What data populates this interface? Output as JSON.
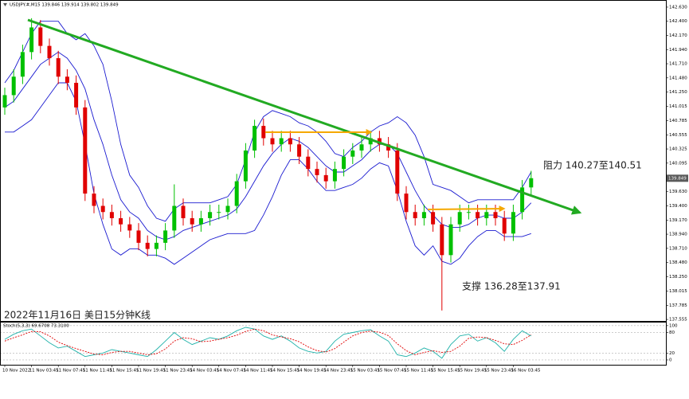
{
  "chart_data": [
    {
      "type": "candlestick",
      "title": "USDJPY.#,M15  139.846 139.914 139.802 139.849",
      "categories": [
        "10 Nov 2022",
        null,
        null,
        "11 Nov 03:45",
        null,
        null,
        "11 Nov 07:45",
        null,
        null,
        "11 Nov 11:45",
        null,
        null,
        "11 Nov 15:45",
        null,
        null,
        "11 Nov 19:45",
        null,
        null,
        "11 Nov 23:45",
        null,
        null,
        "14 Nov 03:45",
        null,
        null,
        "14 Nov 07:45",
        null,
        null,
        "14 Nov 11:45",
        null,
        null,
        "14 Nov 15:45",
        null,
        null,
        "14 Nov 19:45",
        null,
        null,
        "14 Nov 23:45",
        null,
        null,
        "15 Nov 03:45",
        null,
        null,
        "15 Nov 07:45",
        null,
        null,
        "15 Nov 11:45",
        null,
        null,
        "15 Nov 15:45",
        null,
        null,
        "15 Nov 19:45",
        null,
        null,
        "15 Nov 23:45",
        null,
        null,
        "16 Nov 03:45",
        null,
        null
      ],
      "open": [
        141.0,
        141.2,
        141.5,
        141.9,
        142.3,
        142.0,
        141.8,
        141.5,
        141.4,
        141.0,
        139.6,
        139.4,
        139.3,
        139.2,
        139.1,
        139.0,
        138.8,
        138.7,
        138.8,
        139.0,
        139.4,
        139.2,
        139.1,
        139.2,
        139.3,
        139.3,
        139.4,
        139.8,
        140.3,
        140.7,
        140.5,
        140.4,
        140.5,
        140.4,
        140.2,
        140.0,
        139.9,
        139.8,
        140.0,
        140.2,
        140.3,
        140.4,
        140.5,
        140.4,
        140.3,
        139.6,
        139.3,
        139.2,
        139.3,
        139.1,
        138.6,
        139.1,
        139.3,
        139.3,
        139.2,
        139.3,
        139.2,
        138.95,
        139.3,
        139.7
      ],
      "high": [
        141.32,
        141.62,
        142.02,
        142.45,
        142.42,
        142.12,
        141.92,
        141.62,
        141.52,
        141.12,
        139.72,
        139.52,
        139.42,
        139.32,
        139.22,
        139.12,
        138.92,
        138.92,
        139.12,
        139.75,
        139.52,
        139.32,
        139.32,
        139.42,
        139.42,
        139.52,
        139.92,
        140.42,
        140.8,
        140.82,
        140.62,
        140.62,
        140.62,
        140.52,
        140.32,
        140.12,
        140.02,
        140.12,
        140.32,
        140.42,
        140.52,
        140.62,
        140.62,
        140.52,
        140.42,
        139.72,
        139.42,
        139.42,
        139.42,
        139.22,
        139.22,
        139.42,
        139.42,
        139.42,
        139.42,
        139.42,
        139.32,
        139.42,
        139.82,
        139.97
      ],
      "low": [
        140.88,
        141.08,
        141.38,
        141.78,
        141.88,
        141.68,
        141.38,
        141.28,
        140.88,
        139.48,
        139.28,
        139.18,
        139.08,
        138.98,
        138.88,
        138.68,
        138.58,
        138.58,
        138.68,
        138.88,
        139.08,
        138.98,
        138.98,
        139.08,
        139.18,
        139.18,
        139.28,
        139.68,
        140.18,
        140.38,
        140.28,
        140.28,
        140.28,
        140.08,
        139.88,
        139.78,
        139.68,
        139.68,
        139.88,
        140.08,
        140.18,
        140.28,
        140.28,
        140.18,
        139.48,
        139.18,
        139.08,
        139.08,
        138.98,
        137.7,
        138.48,
        138.98,
        139.18,
        139.08,
        139.08,
        139.08,
        138.83,
        138.83,
        139.18,
        139.58
      ],
      "close": [
        141.2,
        141.5,
        141.9,
        142.3,
        142.0,
        141.8,
        141.5,
        141.4,
        141.0,
        139.6,
        139.4,
        139.3,
        139.2,
        139.1,
        139.0,
        138.8,
        138.7,
        138.8,
        139.0,
        139.4,
        139.2,
        139.1,
        139.2,
        139.3,
        139.3,
        139.4,
        139.8,
        140.3,
        140.7,
        140.5,
        140.4,
        140.5,
        140.4,
        140.2,
        140.0,
        139.9,
        139.8,
        140.0,
        140.2,
        140.3,
        140.4,
        140.5,
        140.4,
        140.3,
        139.6,
        139.3,
        139.2,
        139.3,
        139.1,
        138.6,
        139.1,
        139.3,
        139.3,
        139.2,
        139.3,
        139.2,
        138.95,
        139.3,
        139.7,
        139.85
      ],
      "up_color": "#00c000",
      "down_color": "#e00000",
      "overlays": [
        {
          "color": "#1a1ad0",
          "values": [
            141.4,
            141.6,
            141.9,
            142.2,
            142.4,
            142.4,
            142.4,
            142.2,
            142.1,
            142.2,
            142.0,
            141.7,
            141.1,
            140.4,
            139.9,
            139.7,
            139.4,
            139.2,
            139.15,
            139.35,
            139.45,
            139.45,
            139.45,
            139.45,
            139.5,
            139.55,
            139.75,
            140.15,
            140.6,
            140.85,
            140.95,
            140.9,
            140.85,
            140.75,
            140.7,
            140.6,
            140.45,
            140.25,
            140.2,
            140.35,
            140.45,
            140.6,
            140.7,
            140.75,
            140.85,
            140.75,
            140.55,
            140.2,
            139.75,
            139.7,
            139.65,
            139.55,
            139.45,
            139.5,
            139.5,
            139.5,
            139.5,
            139.5,
            139.7,
            139.95
          ]
        },
        {
          "color": "#1a1ad0",
          "values": [
            141.0,
            141.1,
            141.3,
            141.5,
            141.7,
            141.8,
            141.9,
            141.8,
            141.6,
            141.3,
            140.8,
            140.4,
            139.9,
            139.5,
            139.3,
            139.2,
            139.0,
            138.9,
            138.85,
            138.9,
            139.0,
            139.05,
            139.1,
            139.15,
            139.2,
            139.25,
            139.35,
            139.55,
            139.8,
            140.05,
            140.25,
            140.4,
            140.5,
            140.45,
            140.35,
            140.2,
            140.05,
            139.95,
            139.95,
            140.05,
            140.15,
            140.3,
            140.4,
            140.4,
            140.25,
            139.95,
            139.65,
            139.4,
            139.25,
            139.1,
            139.05,
            139.05,
            139.1,
            139.2,
            139.25,
            139.25,
            139.2,
            139.2,
            139.3,
            139.45
          ]
        },
        {
          "color": "#1a1ad0",
          "values": [
            140.6,
            140.6,
            140.7,
            140.8,
            141.0,
            141.2,
            141.4,
            141.4,
            141.1,
            140.4,
            139.6,
            139.1,
            138.7,
            138.6,
            138.7,
            138.7,
            138.6,
            138.6,
            138.55,
            138.45,
            138.55,
            138.65,
            138.75,
            138.85,
            138.9,
            138.95,
            138.95,
            138.95,
            139.0,
            139.25,
            139.55,
            139.9,
            140.15,
            140.15,
            140.0,
            139.8,
            139.65,
            139.65,
            139.7,
            139.75,
            139.85,
            140.0,
            140.1,
            140.05,
            139.65,
            139.15,
            138.75,
            138.6,
            138.75,
            138.5,
            138.45,
            138.55,
            138.75,
            138.9,
            139.0,
            139.0,
            138.9,
            138.9,
            138.9,
            138.95
          ]
        }
      ],
      "last_price": 139.849,
      "ylim": [
        137.53,
        142.72
      ],
      "yticks": [
        {
          "value": 142.63,
          "label": "142.630"
        },
        {
          "value": 142.4,
          "label": "142.400"
        },
        {
          "value": 142.17,
          "label": "142.170"
        },
        {
          "value": 141.94,
          "label": "141.940"
        },
        {
          "value": 141.71,
          "label": "141.710"
        },
        {
          "value": 141.48,
          "label": "141.480"
        },
        {
          "value": 141.25,
          "label": "141.250"
        },
        {
          "value": 141.015,
          "label": "141.015"
        },
        {
          "value": 140.785,
          "label": "140.785"
        },
        {
          "value": 140.555,
          "label": "140.555"
        },
        {
          "value": 140.325,
          "label": "140.325"
        },
        {
          "value": 140.095,
          "label": "140.095"
        },
        {
          "value": 139.865,
          "label": "139.865"
        },
        {
          "value": 139.63,
          "label": "139.630"
        },
        {
          "value": 139.4,
          "label": "139.400"
        },
        {
          "value": 139.17,
          "label": "139.170"
        },
        {
          "value": 138.94,
          "label": "138.940"
        },
        {
          "value": 138.71,
          "label": "138.710"
        },
        {
          "value": 138.48,
          "label": "138.480"
        },
        {
          "value": 138.25,
          "label": "138.250"
        },
        {
          "value": 138.015,
          "label": "138.015"
        },
        {
          "value": 137.785,
          "label": "137.785"
        },
        {
          "value": 137.555,
          "label": "137.555"
        }
      ],
      "annotations": [
        "阻力 140.27至140.51",
        "支撑 136.28至137.91",
        "2022年11月16日 美日15分钟K线"
      ]
    },
    {
      "type": "line",
      "title": "Stoch(5,3,3) 69.6708 73.3100",
      "series": [
        {
          "color": "#20b2aa",
          "dash": false,
          "values": [
            60,
            75,
            85,
            90,
            70,
            50,
            35,
            40,
            25,
            10,
            15,
            20,
            30,
            25,
            20,
            15,
            10,
            30,
            55,
            80,
            60,
            45,
            55,
            65,
            60,
            70,
            85,
            95,
            90,
            70,
            60,
            70,
            55,
            35,
            25,
            20,
            25,
            55,
            75,
            80,
            85,
            88,
            70,
            55,
            15,
            10,
            20,
            35,
            25,
            5,
            45,
            70,
            75,
            55,
            65,
            50,
            25,
            60,
            85,
            69.6708
          ]
        },
        {
          "color": "#e00000",
          "dash": true,
          "values": [
            55,
            65,
            73,
            83,
            82,
            70,
            52,
            42,
            33,
            25,
            17,
            15,
            22,
            25,
            25,
            20,
            15,
            18,
            32,
            55,
            65,
            62,
            53,
            55,
            60,
            65,
            72,
            83,
            90,
            85,
            73,
            67,
            62,
            53,
            38,
            27,
            23,
            33,
            52,
            70,
            80,
            84,
            81,
            71,
            47,
            27,
            15,
            22,
            27,
            22,
            25,
            40,
            63,
            67,
            65,
            57,
            47,
            45,
            57,
            73.31
          ]
        }
      ],
      "ylim": [
        -14,
        109
      ],
      "yticks": [
        0,
        20,
        80,
        100
      ],
      "grid": true
    }
  ]
}
